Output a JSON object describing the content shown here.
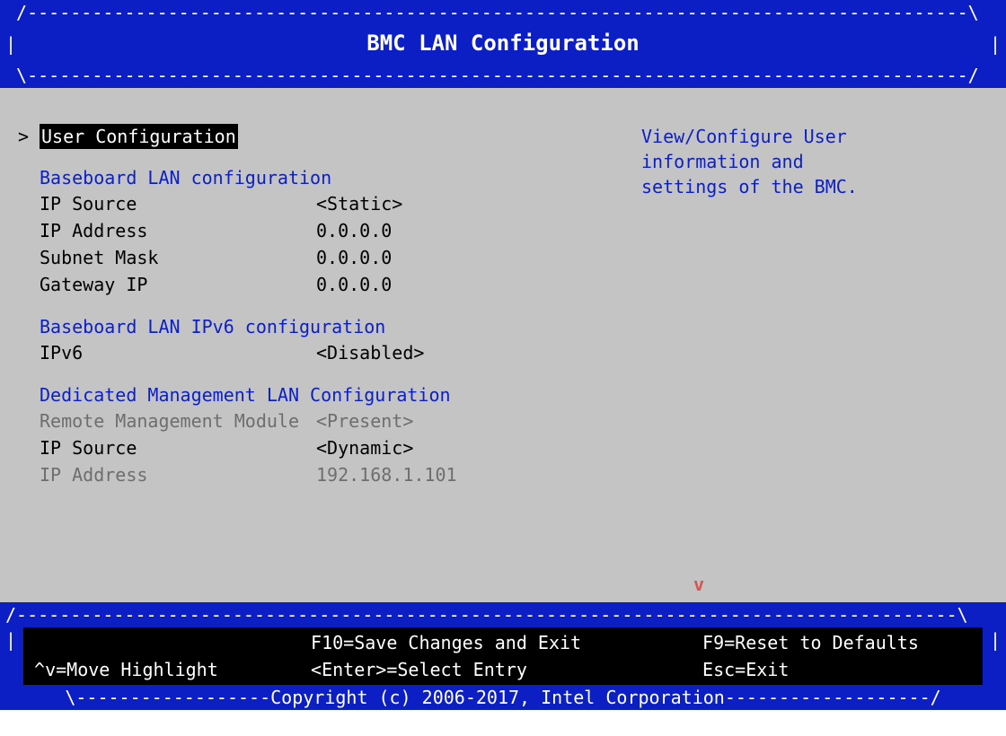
{
  "colors": {
    "frame_bg": "#0c1fc4",
    "panel_bg": "#c4c4c4",
    "text_black": "#000000",
    "text_white": "#ffffff",
    "text_blue": "#0c1fc4",
    "text_gray": "#6e6e6e",
    "accent_red": "#d9534f"
  },
  "title": "BMC LAN Configuration",
  "selected_menu": {
    "indicator": ">",
    "label": "User Configuration"
  },
  "help_text": {
    "line1": "View/Configure User",
    "line2": "information and",
    "line3": "settings of the BMC."
  },
  "sections": [
    {
      "header": "Baseboard LAN configuration",
      "items": [
        {
          "label": "IP Source",
          "value": "<Static>",
          "gray": false
        },
        {
          "label": "IP Address",
          "value": "0.0.0.0",
          "gray": false
        },
        {
          "label": "Subnet Mask",
          "value": "0.0.0.0",
          "gray": false
        },
        {
          "label": "Gateway IP",
          "value": "0.0.0.0",
          "gray": false
        }
      ]
    },
    {
      "header": "Baseboard LAN IPv6 configuration",
      "items": [
        {
          "label": "IPv6",
          "value": "<Disabled>",
          "gray": false
        }
      ]
    },
    {
      "header": "Dedicated Management LAN Configuration",
      "items": [
        {
          "label": "Remote Management Module",
          "value": "<Present>",
          "gray": true
        },
        {
          "label": "IP Source",
          "value": "<Dynamic>",
          "gray": false
        },
        {
          "label": "IP Address",
          "value": "192.168.1.101",
          "gray": true
        }
      ]
    }
  ],
  "scroll_indicator": "v",
  "footer": {
    "row1": {
      "c1": "",
      "c2": "F10=Save Changes and Exit",
      "c3": "F9=Reset to Defaults"
    },
    "row2": {
      "c1": "^v=Move Highlight",
      "c2": "<Enter>=Select Entry",
      "c3": "Esc=Exit"
    }
  },
  "copyright": "Copyright (c) 2006-2017, Intel Corporation"
}
